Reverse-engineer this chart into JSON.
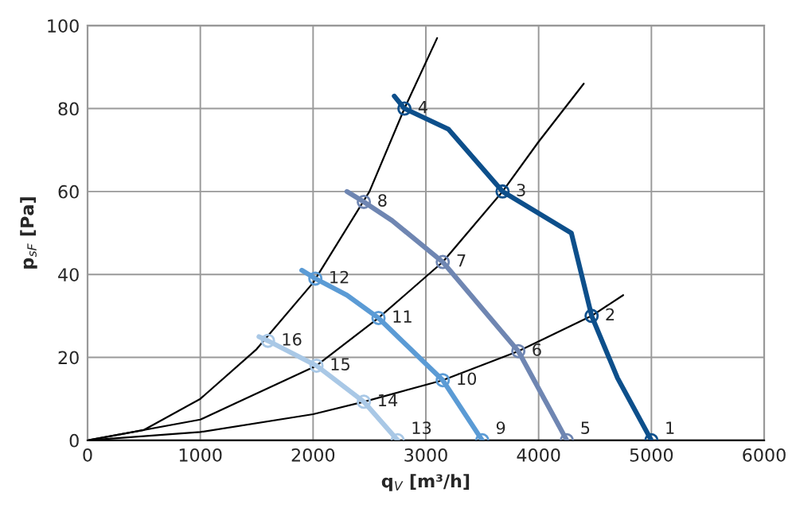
{
  "chart_data": {
    "type": "line",
    "xlabel": "q$_{V}$ [m³/h]",
    "ylabel": "p$_{sF}$ [Pa]",
    "xlim": [
      0,
      6000
    ],
    "ylim": [
      0,
      100
    ],
    "xticks": [
      0,
      1000,
      2000,
      3000,
      4000,
      5000,
      6000
    ],
    "yticks": [
      0,
      20,
      40,
      60,
      80,
      100
    ],
    "grid": true,
    "line_style": "solid",
    "series": [
      {
        "color": "#000000",
        "x": [
          0,
          500,
          1000,
          1500,
          2000,
          2500,
          2810,
          3100
        ],
        "values": [
          0,
          2.5,
          10,
          22,
          38,
          60,
          80,
          97
        ]
      },
      {
        "color": "#000000",
        "x": [
          0,
          1000,
          2030,
          2580,
          3150,
          3680,
          4000,
          4400
        ],
        "values": [
          0,
          5,
          18,
          29.5,
          43,
          60,
          72,
          86
        ]
      },
      {
        "color": "#000000",
        "x": [
          0,
          1000,
          2000,
          2450,
          3150,
          3820,
          4470,
          4750
        ],
        "values": [
          0,
          2,
          6.3,
          9.3,
          14.5,
          21.5,
          30,
          35
        ]
      },
      {
        "color": "#0d4f8b",
        "x": [
          2720,
          2810,
          3200,
          3680,
          4290,
          4470,
          4700,
          5000
        ],
        "values": [
          83,
          80,
          75,
          60,
          50,
          30,
          15,
          0
        ]
      },
      {
        "color": "#6f86b2",
        "x": [
          2300,
          2450,
          2700,
          3150,
          3820,
          4050,
          4250
        ],
        "values": [
          60,
          57.5,
          53,
          43,
          21.5,
          10,
          0
        ]
      },
      {
        "color": "#5b9bd5",
        "x": [
          1900,
          2020,
          2300,
          2580,
          3150,
          3500
        ],
        "values": [
          41,
          39,
          35,
          29.5,
          14.5,
          0
        ]
      },
      {
        "color": "#a9c8e6",
        "x": [
          1520,
          1600,
          2030,
          2450,
          2750
        ],
        "values": [
          25,
          24,
          18,
          9.3,
          0
        ]
      },
      {
        "type": "scatter",
        "marker": "circle",
        "x": [
          5000,
          4470,
          3680,
          2810,
          4250,
          3820,
          3150,
          2450,
          3500,
          3150,
          2580,
          2020,
          2750,
          2450,
          2030,
          1600
        ],
        "values": [
          0,
          30,
          60,
          80,
          0,
          21.5,
          43,
          57.5,
          0,
          14.5,
          29.5,
          39,
          0,
          9.3,
          18,
          24
        ],
        "colors": [
          "#0d4f8b",
          "#0d4f8b",
          "#0d4f8b",
          "#0d4f8b",
          "#6f86b2",
          "#6f86b2",
          "#6f86b2",
          "#6f86b2",
          "#5b9bd5",
          "#5b9bd5",
          "#5b9bd5",
          "#5b9bd5",
          "#a9c8e6",
          "#a9c8e6",
          "#a9c8e6",
          "#a9c8e6"
        ]
      }
    ],
    "annotations": [
      {
        "text": "1",
        "x": 5000,
        "y": 0
      },
      {
        "text": "2",
        "x": 4470,
        "y": 30
      },
      {
        "text": "3",
        "x": 3680,
        "y": 60
      },
      {
        "text": "4",
        "x": 2810,
        "y": 80
      },
      {
        "text": "5",
        "x": 4250,
        "y": 0
      },
      {
        "text": "6",
        "x": 3820,
        "y": 21.5
      },
      {
        "text": "7",
        "x": 3150,
        "y": 43
      },
      {
        "text": "8",
        "x": 2450,
        "y": 57.5
      },
      {
        "text": "9",
        "x": 3500,
        "y": 0
      },
      {
        "text": "10",
        "x": 3150,
        "y": 14.5
      },
      {
        "text": "11",
        "x": 2580,
        "y": 29.5
      },
      {
        "text": "12",
        "x": 2020,
        "y": 39
      },
      {
        "text": "13",
        "x": 2750,
        "y": 0
      },
      {
        "text": "14",
        "x": 2450,
        "y": 9.3
      },
      {
        "text": "15",
        "x": 2030,
        "y": 18
      },
      {
        "text": "16",
        "x": 1600,
        "y": 24
      }
    ]
  }
}
